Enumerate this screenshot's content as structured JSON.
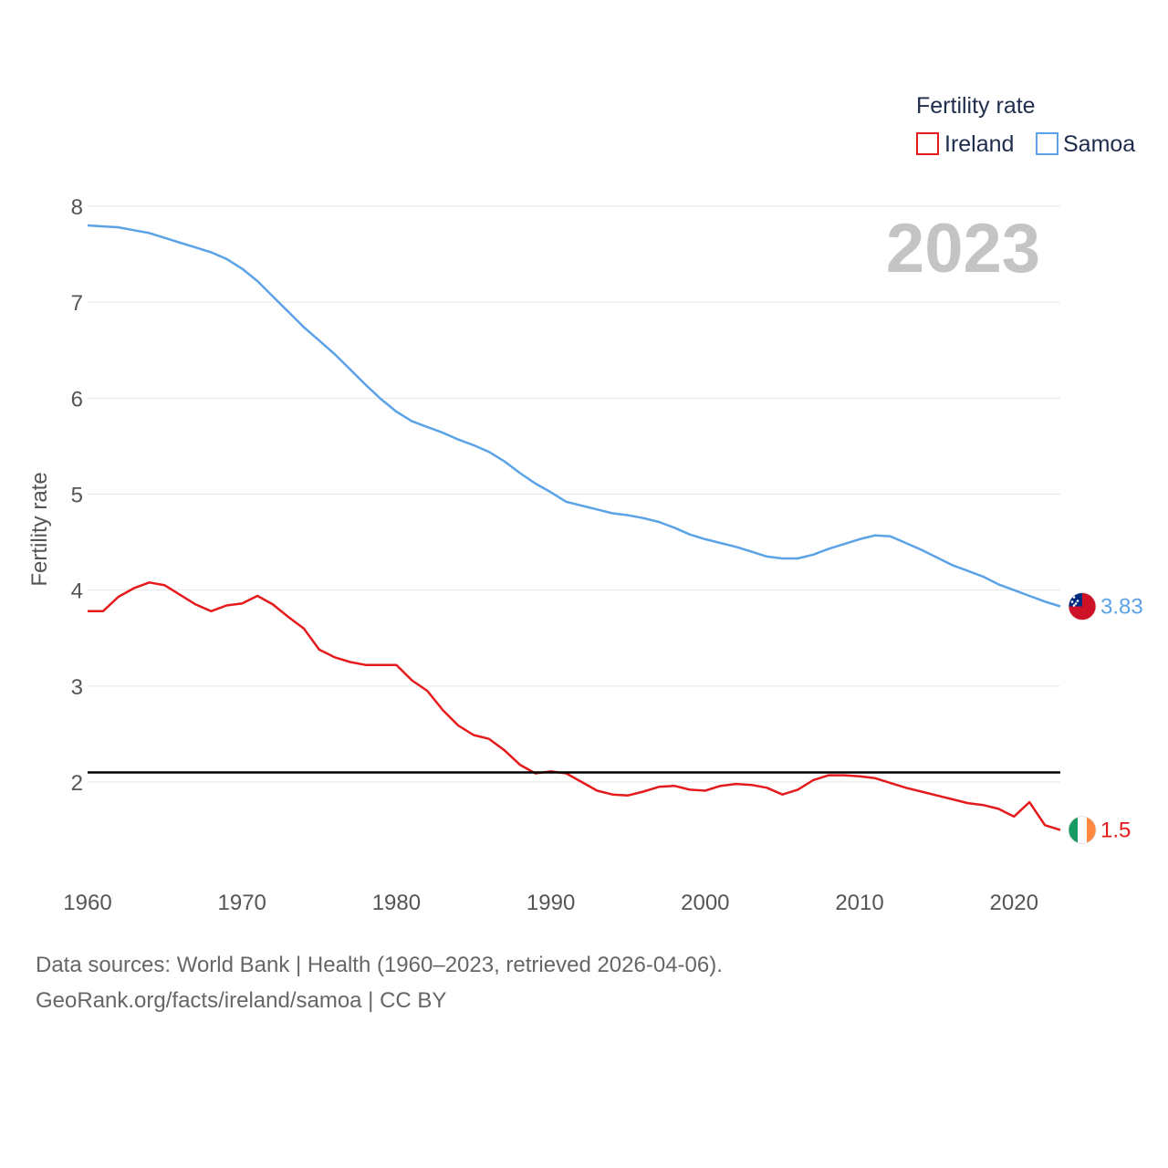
{
  "chart_data": {
    "type": "line",
    "title": "",
    "xlabel": "",
    "ylabel": "Fertility rate",
    "xlim": [
      1960,
      2023
    ],
    "ylim": [
      1.0,
      8.0
    ],
    "x_ticks": [
      1960,
      1970,
      1980,
      1990,
      2000,
      2010,
      2020
    ],
    "y_ticks": [
      2,
      3,
      4,
      5,
      6,
      7,
      8
    ],
    "year_label": "2023",
    "legend": {
      "title": "Fertility rate",
      "position": "top-right"
    },
    "reference_line": {
      "y": 2.1,
      "color": "#000000"
    },
    "x": [
      1960,
      1961,
      1962,
      1963,
      1964,
      1965,
      1966,
      1967,
      1968,
      1969,
      1970,
      1971,
      1972,
      1973,
      1974,
      1975,
      1976,
      1977,
      1978,
      1979,
      1980,
      1981,
      1982,
      1983,
      1984,
      1985,
      1986,
      1987,
      1988,
      1989,
      1990,
      1991,
      1992,
      1993,
      1994,
      1995,
      1996,
      1997,
      1998,
      1999,
      2000,
      2001,
      2002,
      2003,
      2004,
      2005,
      2006,
      2007,
      2008,
      2009,
      2010,
      2011,
      2012,
      2013,
      2014,
      2015,
      2016,
      2017,
      2018,
      2019,
      2020,
      2021,
      2022,
      2023
    ],
    "series": [
      {
        "name": "Ireland",
        "color": "#e41a1c",
        "end_label": "1.5",
        "flag": "ireland-flag",
        "values": [
          3.78,
          3.78,
          3.93,
          4.02,
          4.08,
          4.05,
          3.95,
          3.85,
          3.78,
          3.84,
          3.86,
          3.94,
          3.85,
          3.72,
          3.6,
          3.38,
          3.3,
          3.25,
          3.22,
          3.22,
          3.22,
          3.06,
          2.95,
          2.75,
          2.59,
          2.49,
          2.45,
          2.33,
          2.18,
          2.09,
          2.11,
          2.09,
          2.0,
          1.91,
          1.87,
          1.86,
          1.9,
          1.95,
          1.96,
          1.92,
          1.91,
          1.96,
          1.98,
          1.97,
          1.94,
          1.87,
          1.92,
          2.02,
          2.07,
          2.07,
          2.06,
          2.04,
          1.99,
          1.94,
          1.9,
          1.86,
          1.82,
          1.78,
          1.76,
          1.72,
          1.64,
          1.79,
          1.55,
          1.5
        ]
      },
      {
        "name": "Samoa",
        "color": "#5ba3e6",
        "end_label": "3.83",
        "flag": "samoa-flag",
        "values": [
          7.8,
          7.79,
          7.78,
          7.75,
          7.72,
          7.67,
          7.62,
          7.57,
          7.52,
          7.45,
          7.35,
          7.22,
          7.06,
          6.9,
          6.74,
          6.6,
          6.46,
          6.3,
          6.14,
          5.99,
          5.86,
          5.76,
          5.7,
          5.64,
          5.57,
          5.51,
          5.44,
          5.34,
          5.22,
          5.11,
          5.02,
          4.92,
          4.88,
          4.84,
          4.8,
          4.78,
          4.75,
          4.71,
          4.65,
          4.58,
          4.53,
          4.49,
          4.45,
          4.4,
          4.35,
          4.33,
          4.33,
          4.37,
          4.43,
          4.48,
          4.53,
          4.57,
          4.56,
          4.49,
          4.42,
          4.34,
          4.26,
          4.2,
          4.14,
          4.06,
          4.0,
          3.94,
          3.88,
          3.83
        ]
      }
    ]
  },
  "footer": {
    "line1": "Data sources: World Bank | Health (1960–2023, retrieved 2026-04-06).",
    "line2": "GeoRank.org/facts/ireland/samoa | CC BY"
  }
}
